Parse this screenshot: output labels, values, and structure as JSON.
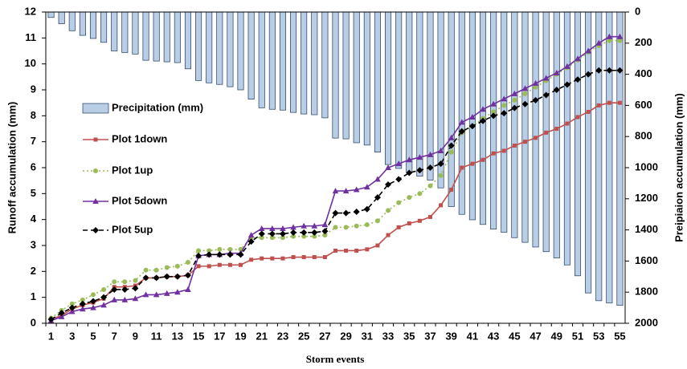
{
  "chart_data": {
    "type": "combo",
    "x_label": "Storm events",
    "y_label": "Runoff accumulation (mm)",
    "y2_label": "Preipiaion accumulation (mm)",
    "categories": [
      "1",
      null,
      "3",
      null,
      "5",
      null,
      "7",
      null,
      "9",
      null,
      "11",
      null,
      "13",
      null,
      "15",
      null,
      "17",
      null,
      "19",
      null,
      "21",
      null,
      "23",
      null,
      "25",
      null,
      "27",
      null,
      "29",
      null,
      "31",
      null,
      "33",
      null,
      "35",
      null,
      "37",
      null,
      "39",
      null,
      "41",
      null,
      "43",
      null,
      "45",
      null,
      "47",
      null,
      "49",
      null,
      "51",
      null,
      "53",
      null,
      "55"
    ],
    "ylim": [
      0,
      12
    ],
    "yticks": [
      0,
      1,
      2,
      3,
      4,
      5,
      6,
      7,
      8,
      9,
      10,
      11,
      12
    ],
    "y2lim": [
      0,
      2000
    ],
    "y2ticks": [
      0,
      200,
      400,
      600,
      800,
      1000,
      1200,
      1400,
      1600,
      1800,
      2000
    ],
    "y2_inverted": true,
    "series": [
      {
        "name": "Precipitation (mm)",
        "type": "bar",
        "axis": "y2",
        "color": "#b9cde5",
        "edge": "#1f3b5c",
        "values": [
          35,
          75,
          120,
          150,
          170,
          195,
          250,
          260,
          270,
          310,
          315,
          320,
          325,
          365,
          440,
          455,
          465,
          480,
          500,
          560,
          615,
          625,
          630,
          645,
          655,
          660,
          680,
          810,
          815,
          840,
          855,
          900,
          980,
          1005,
          1030,
          1055,
          1080,
          1130,
          1250,
          1300,
          1335,
          1365,
          1395,
          1415,
          1450,
          1480,
          1510,
          1540,
          1580,
          1625,
          1695,
          1805,
          1855,
          1870,
          1885
        ]
      },
      {
        "name": "Plot 1down",
        "type": "line",
        "color": "#c0504d",
        "marker": "square",
        "dash": "solid",
        "values": [
          0.15,
          0.3,
          0.55,
          0.7,
          0.8,
          0.95,
          1.4,
          1.4,
          1.45,
          1.75,
          1.75,
          1.8,
          1.8,
          1.85,
          2.2,
          2.2,
          2.25,
          2.25,
          2.25,
          2.45,
          2.5,
          2.5,
          2.5,
          2.55,
          2.55,
          2.55,
          2.55,
          2.8,
          2.8,
          2.8,
          2.85,
          3.0,
          3.4,
          3.7,
          3.85,
          3.95,
          4.1,
          4.55,
          5.15,
          6.0,
          6.15,
          6.3,
          6.55,
          6.65,
          6.85,
          7.0,
          7.15,
          7.35,
          7.5,
          7.7,
          7.95,
          8.15,
          8.4,
          8.5,
          8.5
        ]
      },
      {
        "name": "Plot 1up",
        "type": "line",
        "color": "#9bbb59",
        "marker": "circle",
        "dash": "dotted",
        "values": [
          0.2,
          0.5,
          0.75,
          0.9,
          1.1,
          1.3,
          1.6,
          1.6,
          1.65,
          2.05,
          2.05,
          2.15,
          2.2,
          2.35,
          2.8,
          2.8,
          2.85,
          2.85,
          2.85,
          3.3,
          3.3,
          3.3,
          3.3,
          3.35,
          3.35,
          3.35,
          3.4,
          3.7,
          3.7,
          3.75,
          3.8,
          3.95,
          4.35,
          4.65,
          4.85,
          5.0,
          5.3,
          5.7,
          6.6,
          7.35,
          7.6,
          7.9,
          8.15,
          8.4,
          8.6,
          8.85,
          9.1,
          9.35,
          9.6,
          9.85,
          10.15,
          10.45,
          10.7,
          10.9,
          10.9
        ]
      },
      {
        "name": "Plot 5down",
        "type": "line",
        "color": "#7030a0",
        "marker": "triangle",
        "dash": "solid",
        "values": [
          0.1,
          0.25,
          0.45,
          0.55,
          0.6,
          0.7,
          0.9,
          0.9,
          0.95,
          1.1,
          1.1,
          1.15,
          1.2,
          1.3,
          2.6,
          2.65,
          2.65,
          2.7,
          2.7,
          3.4,
          3.65,
          3.65,
          3.65,
          3.7,
          3.75,
          3.75,
          3.8,
          5.1,
          5.1,
          5.15,
          5.25,
          5.55,
          6.0,
          6.15,
          6.3,
          6.4,
          6.5,
          6.65,
          7.15,
          7.75,
          7.95,
          8.25,
          8.45,
          8.65,
          8.85,
          9.05,
          9.25,
          9.45,
          9.65,
          9.9,
          10.2,
          10.5,
          10.8,
          11.05,
          11.05
        ]
      },
      {
        "name": "Plot 5up",
        "type": "line",
        "color": "#000000",
        "marker": "diamond",
        "dash": "dashed",
        "values": [
          0.15,
          0.4,
          0.6,
          0.75,
          0.85,
          1.0,
          1.3,
          1.3,
          1.35,
          1.75,
          1.75,
          1.8,
          1.8,
          1.85,
          2.6,
          2.65,
          2.65,
          2.65,
          2.65,
          3.15,
          3.45,
          3.45,
          3.45,
          3.5,
          3.5,
          3.5,
          3.55,
          4.25,
          4.25,
          4.3,
          4.4,
          4.85,
          5.35,
          5.55,
          5.8,
          5.9,
          6.0,
          6.15,
          6.85,
          7.4,
          7.6,
          7.8,
          8.0,
          8.1,
          8.3,
          8.45,
          8.6,
          8.8,
          9.0,
          9.2,
          9.4,
          9.6,
          9.75,
          9.75,
          9.75
        ]
      }
    ],
    "legend": "left"
  }
}
